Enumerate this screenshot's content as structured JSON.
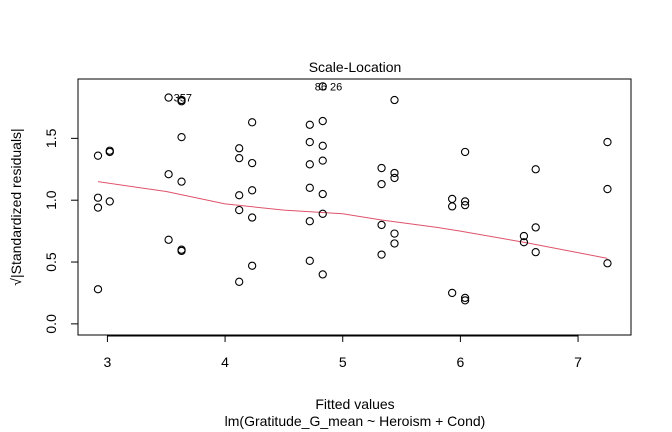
{
  "chart_data": {
    "type": "scatter",
    "title": "Scale-Location",
    "xlabel": "Fitted values",
    "subtitle": "lm(Gratitude_G_mean ~ Heroism + Cond)",
    "ylabel": "√|Standardized residuals|",
    "xlim": [
      2.75,
      7.45
    ],
    "ylim": [
      -0.09,
      1.98
    ],
    "xticks": [
      3,
      4,
      5,
      6,
      7
    ],
    "xtick_labels": [
      "3",
      "4",
      "5",
      "6",
      "7"
    ],
    "yticks": [
      0.0,
      0.5,
      1.0,
      1.5
    ],
    "ytick_labels": [
      "0.0",
      "0.5",
      "1.0",
      "1.5"
    ],
    "grid": false,
    "colors": {
      "points": "#000000",
      "smooth": "#DF536B",
      "frame": "#000000"
    },
    "points": [
      {
        "x": 2.92,
        "y": 1.36
      },
      {
        "x": 2.92,
        "y": 1.02
      },
      {
        "x": 2.92,
        "y": 0.94
      },
      {
        "x": 2.92,
        "y": 0.28
      },
      {
        "x": 3.02,
        "y": 1.4
      },
      {
        "x": 3.02,
        "y": 1.39
      },
      {
        "x": 3.02,
        "y": 0.99
      },
      {
        "x": 3.52,
        "y": 1.83
      },
      {
        "x": 3.52,
        "y": 1.21
      },
      {
        "x": 3.52,
        "y": 0.68
      },
      {
        "x": 3.63,
        "y": 1.81
      },
      {
        "x": 3.63,
        "y": 1.8
      },
      {
        "x": 3.63,
        "y": 1.51
      },
      {
        "x": 3.63,
        "y": 1.15
      },
      {
        "x": 3.63,
        "y": 0.6
      },
      {
        "x": 3.63,
        "y": 0.59
      },
      {
        "x": 4.12,
        "y": 1.42
      },
      {
        "x": 4.12,
        "y": 1.34
      },
      {
        "x": 4.12,
        "y": 1.04
      },
      {
        "x": 4.12,
        "y": 0.92
      },
      {
        "x": 4.12,
        "y": 0.34
      },
      {
        "x": 4.23,
        "y": 1.63
      },
      {
        "x": 4.23,
        "y": 1.3
      },
      {
        "x": 4.23,
        "y": 1.08
      },
      {
        "x": 4.23,
        "y": 0.86
      },
      {
        "x": 4.23,
        "y": 0.47
      },
      {
        "x": 4.72,
        "y": 1.61
      },
      {
        "x": 4.72,
        "y": 1.47
      },
      {
        "x": 4.72,
        "y": 1.29
      },
      {
        "x": 4.72,
        "y": 1.1
      },
      {
        "x": 4.72,
        "y": 0.83
      },
      {
        "x": 4.72,
        "y": 0.51
      },
      {
        "x": 4.83,
        "y": 1.92
      },
      {
        "x": 4.83,
        "y": 1.64
      },
      {
        "x": 4.83,
        "y": 1.44
      },
      {
        "x": 4.83,
        "y": 1.32
      },
      {
        "x": 4.83,
        "y": 1.05
      },
      {
        "x": 4.83,
        "y": 0.89
      },
      {
        "x": 4.83,
        "y": 0.4
      },
      {
        "x": 5.33,
        "y": 1.26
      },
      {
        "x": 5.33,
        "y": 1.13
      },
      {
        "x": 5.33,
        "y": 0.8
      },
      {
        "x": 5.33,
        "y": 0.56
      },
      {
        "x": 5.44,
        "y": 1.81
      },
      {
        "x": 5.44,
        "y": 1.22
      },
      {
        "x": 5.44,
        "y": 1.18
      },
      {
        "x": 5.44,
        "y": 0.73
      },
      {
        "x": 5.44,
        "y": 0.65
      },
      {
        "x": 5.93,
        "y": 1.01
      },
      {
        "x": 5.93,
        "y": 0.95
      },
      {
        "x": 5.93,
        "y": 0.25
      },
      {
        "x": 6.04,
        "y": 1.39
      },
      {
        "x": 6.04,
        "y": 0.99
      },
      {
        "x": 6.04,
        "y": 0.96
      },
      {
        "x": 6.04,
        "y": 0.21
      },
      {
        "x": 6.04,
        "y": 0.19
      },
      {
        "x": 6.54,
        "y": 0.71
      },
      {
        "x": 6.54,
        "y": 0.66
      },
      {
        "x": 6.64,
        "y": 1.25
      },
      {
        "x": 6.64,
        "y": 0.78
      },
      {
        "x": 6.64,
        "y": 0.58
      },
      {
        "x": 7.25,
        "y": 1.47
      },
      {
        "x": 7.25,
        "y": 1.09
      },
      {
        "x": 7.25,
        "y": 0.49
      }
    ],
    "smooth_line": [
      {
        "x": 2.92,
        "y": 1.15
      },
      {
        "x": 3.5,
        "y": 1.07
      },
      {
        "x": 4.0,
        "y": 0.97
      },
      {
        "x": 4.5,
        "y": 0.92
      },
      {
        "x": 5.0,
        "y": 0.89
      },
      {
        "x": 5.33,
        "y": 0.84
      },
      {
        "x": 5.8,
        "y": 0.78
      },
      {
        "x": 6.0,
        "y": 0.75
      },
      {
        "x": 6.54,
        "y": 0.66
      },
      {
        "x": 7.25,
        "y": 0.53
      }
    ],
    "annotations": [
      {
        "text": "357",
        "x": 3.52,
        "y": 1.83
      },
      {
        "text": "86",
        "x": 4.72,
        "y": 1.92
      },
      {
        "text": "26",
        "x": 4.72,
        "y": 1.92
      }
    ]
  }
}
